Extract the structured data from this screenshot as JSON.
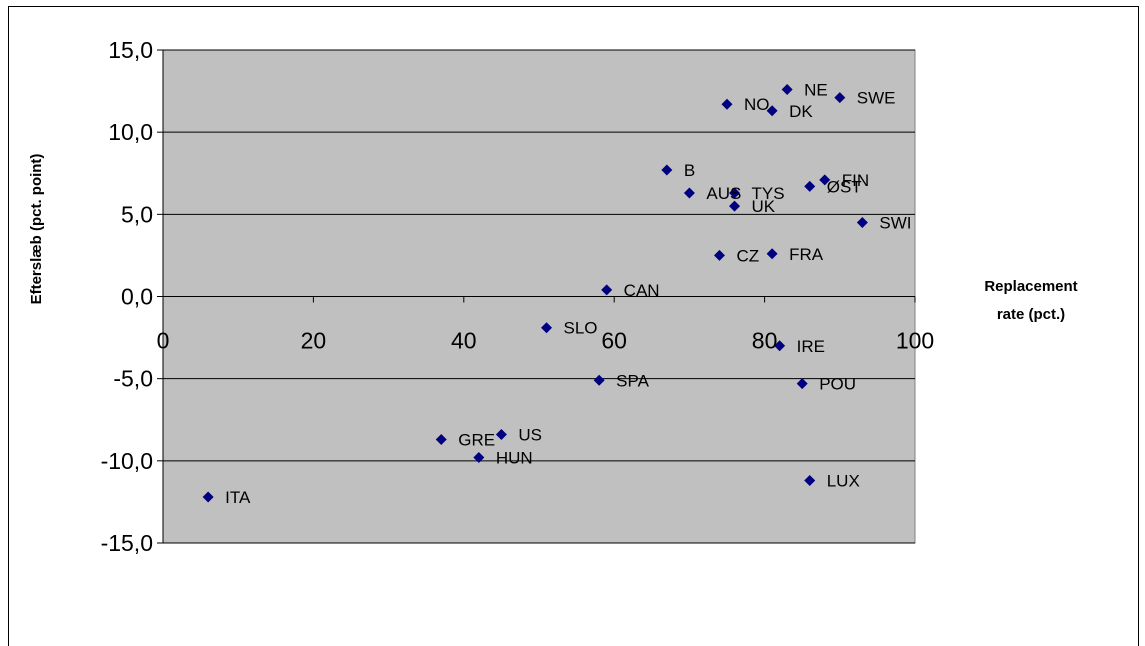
{
  "chart_data": {
    "type": "scatter",
    "title": "",
    "xlabel": "Replacement rate (pct.)",
    "xlabel_lines": [
      "Replacement",
      "rate (pct.)"
    ],
    "ylabel": "Efterslæb (pct. point)",
    "xlim": [
      0,
      100
    ],
    "ylim": [
      -15,
      15
    ],
    "x_ticks": [
      0,
      20,
      40,
      60,
      80,
      100
    ],
    "x_tick_labels": [
      "0",
      "20",
      "40",
      "60",
      "80",
      "100"
    ],
    "y_ticks": [
      15,
      10,
      5,
      0,
      -5,
      -10,
      -15
    ],
    "y_tick_labels": [
      "15,0",
      "10,0",
      "5,0",
      "0,0",
      "-5,0",
      "-10,0",
      "-15,0"
    ],
    "grid": "horizontal",
    "legend": "none",
    "plot_background": "#c0c0c0",
    "marker_color": "#000080",
    "points": [
      {
        "label": "ITA",
        "x": 6,
        "y": -12.2
      },
      {
        "label": "GRE",
        "x": 37,
        "y": -8.7
      },
      {
        "label": "HUN",
        "x": 42,
        "y": -9.8
      },
      {
        "label": "US",
        "x": 45,
        "y": -8.4
      },
      {
        "label": "SLO",
        "x": 51,
        "y": -1.9
      },
      {
        "label": "SPA",
        "x": 58,
        "y": -5.1
      },
      {
        "label": "CAN",
        "x": 59,
        "y": 0.4
      },
      {
        "label": "B",
        "x": 67,
        "y": 7.7
      },
      {
        "label": "AUS",
        "x": 70,
        "y": 6.3
      },
      {
        "label": "CZ",
        "x": 74,
        "y": 2.5
      },
      {
        "label": "NO",
        "x": 75,
        "y": 11.7
      },
      {
        "label": "TYS",
        "x": 76,
        "y": 6.3
      },
      {
        "label": "UK",
        "x": 76,
        "y": 5.5
      },
      {
        "label": "DK",
        "x": 81,
        "y": 11.3
      },
      {
        "label": "FRA",
        "x": 81,
        "y": 2.6
      },
      {
        "label": "IRE",
        "x": 82,
        "y": -3.0
      },
      {
        "label": "NE",
        "x": 83,
        "y": 12.6
      },
      {
        "label": "POU",
        "x": 85,
        "y": -5.3
      },
      {
        "label": "ØST",
        "x": 86,
        "y": 6.7
      },
      {
        "label": "LUX",
        "x": 86,
        "y": -11.2
      },
      {
        "label": "FIN",
        "x": 88,
        "y": 7.1
      },
      {
        "label": "SWE",
        "x": 90,
        "y": 12.1
      },
      {
        "label": "SWI",
        "x": 93,
        "y": 4.5
      }
    ]
  }
}
